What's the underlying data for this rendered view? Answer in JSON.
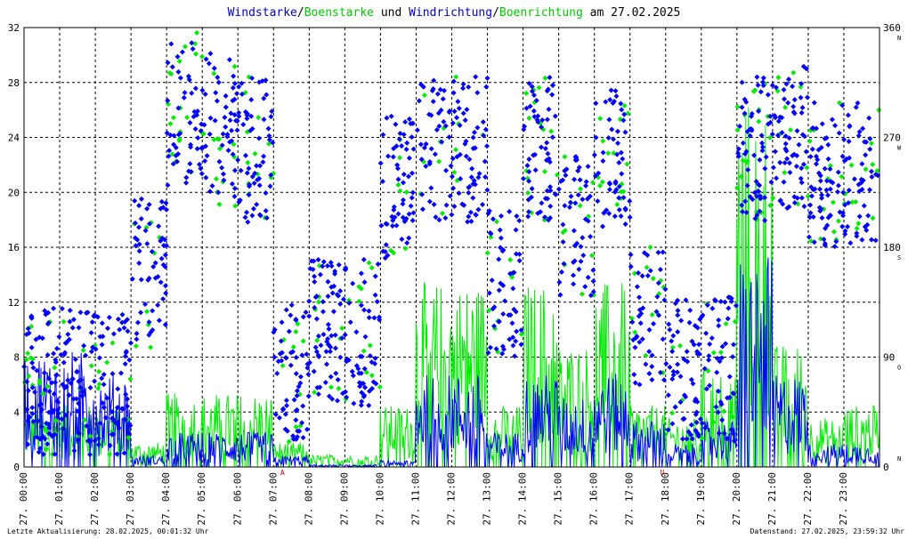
{
  "chart_data": {
    "type": "scatter",
    "title_parts": [
      {
        "text": "Windstarke",
        "color": "#0000cc"
      },
      {
        "text": "/",
        "color": "#000000"
      },
      {
        "text": "Boenstarke",
        "color": "#00cc00"
      },
      {
        "text": " und ",
        "color": "#000000"
      },
      {
        "text": "Windrichtung",
        "color": "#0000cc"
      },
      {
        "text": "/",
        "color": "#000000"
      },
      {
        "text": "Boenrichtung",
        "color": "#00cc00"
      },
      {
        "text": " am 27.02.2025",
        "color": "#000000"
      }
    ],
    "y_left": {
      "range": [
        0,
        32
      ],
      "ticks": [
        "0",
        "4",
        "8",
        "12",
        "16",
        "20",
        "24",
        "28",
        "32"
      ]
    },
    "y_right": {
      "range": [
        0,
        360
      ],
      "ticks": [
        "0",
        "90",
        "180",
        "270",
        "360"
      ],
      "direction_labels": [
        {
          "label": "N",
          "value": 0
        },
        {
          "label": "O",
          "value": 90
        },
        {
          "label": "S",
          "value": 180
        },
        {
          "label": "W",
          "value": 270
        },
        {
          "label": "N",
          "value": 360
        }
      ]
    },
    "x_ticks": [
      "27. 00:00",
      "27. 01:00",
      "27. 02:00",
      "27. 03:00",
      "27. 04:00",
      "27. 05:00",
      "27. 06:00",
      "27. 07:00",
      "27. 08:00",
      "27. 09:00",
      "27. 10:00",
      "27. 11:00",
      "27. 12:00",
      "27. 13:00",
      "27. 14:00",
      "27. 15:00",
      "27. 16:00",
      "27. 17:00",
      "27. 18:00",
      "27. 19:00",
      "27. 20:00",
      "27. 21:00",
      "27. 22:00",
      "27. 23:00"
    ],
    "x_markers": [
      {
        "hour": 7.25,
        "label": "A"
      },
      {
        "hour": 17.9,
        "label": "U"
      }
    ],
    "grid": true,
    "series": [
      {
        "name": "Windstarke",
        "color": "#0000ff",
        "kind": "line",
        "hourly_mean": [
          5,
          5,
          4,
          0.5,
          1.5,
          1.5,
          1.5,
          0.5,
          0.1,
          0.1,
          0.3,
          4,
          4,
          1.5,
          4,
          3,
          4,
          2,
          1,
          2,
          9,
          4,
          1,
          1
        ]
      },
      {
        "name": "Boenstarke",
        "color": "#00ee00",
        "kind": "line",
        "hourly_mean": [
          2.5,
          2.5,
          2.5,
          1,
          3,
          3,
          3,
          1,
          0.5,
          0.5,
          2.5,
          7.5,
          7.5,
          2.5,
          7.5,
          5,
          7.5,
          2.5,
          2,
          4,
          15,
          5,
          2,
          2.5
        ]
      },
      {
        "name": "Windrichtung",
        "color": "#0000ff",
        "kind": "scatter",
        "hourly_mean": [
          70,
          70,
          70,
          160,
          290,
          280,
          260,
          80,
          110,
          110,
          230,
          260,
          260,
          150,
          260,
          200,
          250,
          120,
          80,
          80,
          260,
          270,
          240,
          240
        ]
      },
      {
        "name": "Boenrichtung",
        "color": "#00ee00",
        "kind": "scatter",
        "hourly_mean": [
          70,
          70,
          70,
          150,
          300,
          270,
          260,
          80,
          110,
          110,
          230,
          260,
          260,
          150,
          260,
          200,
          250,
          120,
          80,
          80,
          260,
          270,
          240,
          240
        ]
      }
    ]
  },
  "footer": {
    "left": "Letzte Aktualisierung: 28.02.2025, 00:01:32 Uhr",
    "right": "Datenstand: 27.02.2025, 23:59:32 Uhr"
  }
}
